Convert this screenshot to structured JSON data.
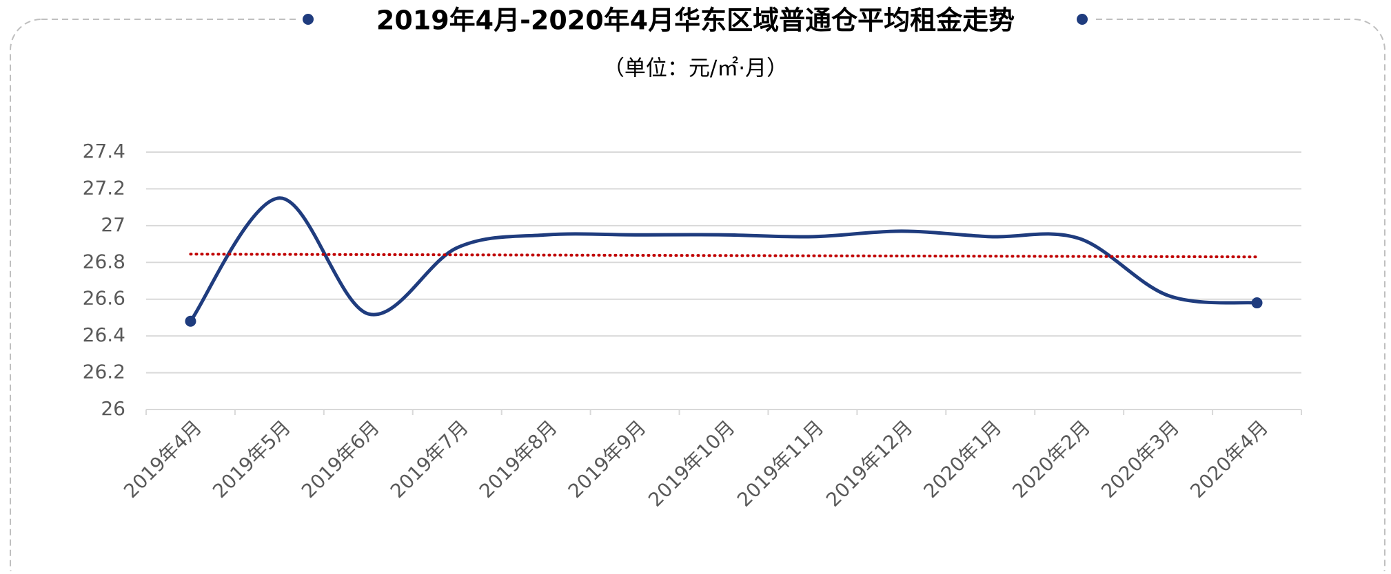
{
  "chart_data": {
    "type": "line",
    "title": "2019年4月-2020年4月华东区域普通仓平均租金走势",
    "subtitle": "（单位：元/㎡·月）",
    "categories": [
      "2019年4月",
      "2019年5月",
      "2019年6月",
      "2019年7月",
      "2019年8月",
      "2019年9月",
      "2019年10月",
      "2019年11月",
      "2019年12月",
      "2020年1月",
      "2020年2月",
      "2020年3月",
      "2020年4月"
    ],
    "series": [
      {
        "color": "#1f3c7e",
        "values": [
          26.48,
          27.15,
          26.52,
          26.88,
          26.95,
          26.95,
          26.95,
          26.94,
          26.97,
          26.94,
          26.93,
          26.62,
          26.58
        ]
      }
    ],
    "trendline": {
      "color": "#c00000",
      "start": 26.845,
      "end": 26.83
    },
    "ylim": [
      26,
      27.4
    ],
    "yticks": [
      26,
      26.2,
      26.4,
      26.6,
      26.8,
      27,
      27.2,
      27.4
    ],
    "grid": true,
    "smooth": true
  }
}
